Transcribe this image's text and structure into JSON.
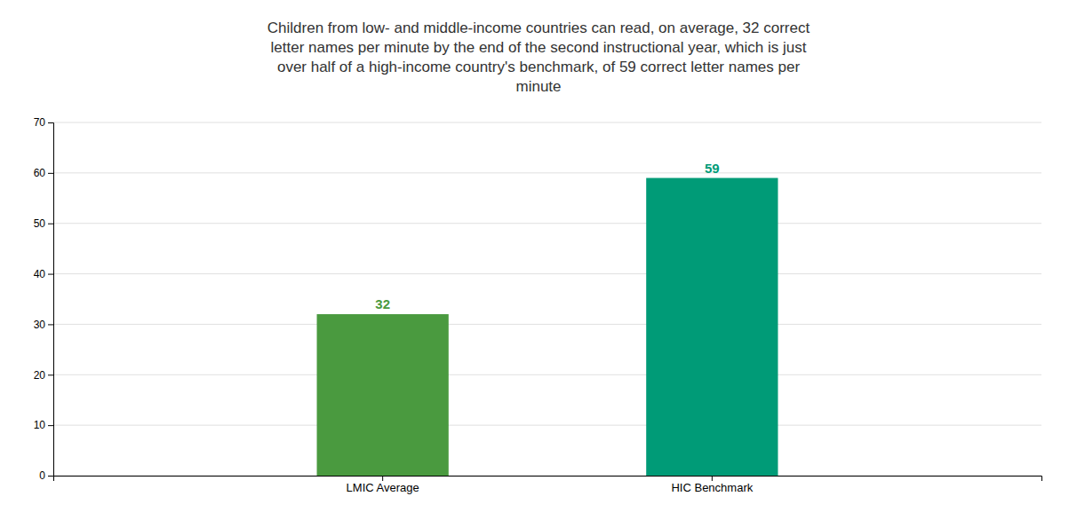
{
  "chart_data": {
    "type": "bar",
    "title": [
      "Children from low- and middle-income countries can read, on average, 32 correct",
      "letter names per minute by the end of the second instructional year, which is just",
      "over half of a high-income country's benchmark, of 59 correct letter names per",
      "minute"
    ],
    "categories": [
      "LMIC Average",
      "HIC Benchmark"
    ],
    "values": [
      32,
      59
    ],
    "colors": [
      "#4a9a3f",
      "#009b77"
    ],
    "data_labels": true,
    "ylim": [
      0,
      70
    ],
    "yticks": [
      0,
      10,
      20,
      30,
      40,
      50,
      60,
      70
    ],
    "grid": true
  }
}
